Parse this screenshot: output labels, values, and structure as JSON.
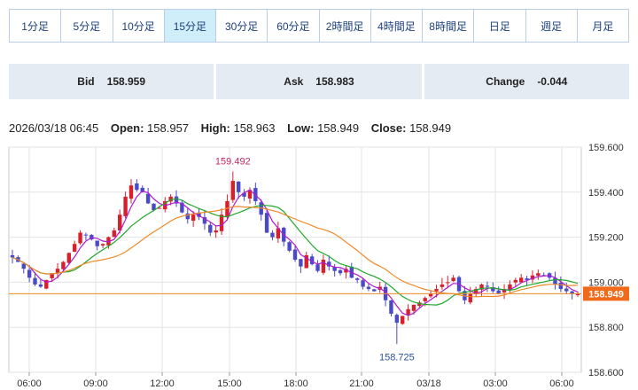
{
  "tabs": [
    {
      "label": "1分足",
      "active": false
    },
    {
      "label": "5分足",
      "active": false
    },
    {
      "label": "10分足",
      "active": false
    },
    {
      "label": "15分足",
      "active": true
    },
    {
      "label": "30分足",
      "active": false
    },
    {
      "label": "60分足",
      "active": false
    },
    {
      "label": "2時間足",
      "active": false
    },
    {
      "label": "4時間足",
      "active": false
    },
    {
      "label": "8時間足",
      "active": false
    },
    {
      "label": "日足",
      "active": false
    },
    {
      "label": "週足",
      "active": false
    },
    {
      "label": "月足",
      "active": false
    }
  ],
  "quotes": {
    "bid_label": "Bid",
    "bid_value": "158.959",
    "ask_label": "Ask",
    "ask_value": "158.983",
    "change_label": "Change",
    "change_value": "-0.044"
  },
  "ohlc": {
    "datetime": "2026/03/18 06:45",
    "open_label": "Open:",
    "open": "158.957",
    "high_label": "High:",
    "high": "158.963",
    "low_label": "Low:",
    "low": "158.949",
    "close_label": "Close:",
    "close": "158.949"
  },
  "chart_data": {
    "type": "candlestick",
    "ylim": [
      158.6,
      159.6
    ],
    "y_ticks": [
      "159.600",
      "159.400",
      "159.200",
      "159.000",
      "158.800",
      "158.600"
    ],
    "x_ticks": [
      "06:00",
      "09:00",
      "12:00",
      "15:00",
      "18:00",
      "21:00",
      "03/18",
      "03:00",
      "06:00"
    ],
    "current_price_label": "158.949",
    "current_price": 158.949,
    "high_annotation": {
      "label": "159.492",
      "value": 159.492
    },
    "low_annotation": {
      "label": "158.725",
      "value": 158.725
    },
    "colors": {
      "up": "#d8202c",
      "down": "#4a4ac8",
      "ma_short": "#b01ad0",
      "ma_mid": "#1fa82a",
      "ma_long": "#f08a28",
      "price_line": "#f08a28"
    },
    "closes": [
      159.11,
      159.09,
      159.06,
      159.02,
      158.99,
      158.98,
      159.01,
      159.04,
      159.06,
      159.09,
      159.13,
      159.17,
      159.22,
      159.21,
      159.19,
      159.16,
      159.17,
      159.2,
      159.23,
      159.3,
      159.38,
      159.43,
      159.41,
      159.4,
      159.35,
      159.32,
      159.33,
      159.36,
      159.38,
      159.35,
      159.31,
      159.28,
      159.3,
      159.29,
      159.26,
      159.22,
      159.23,
      159.3,
      159.36,
      159.45,
      159.4,
      159.38,
      159.41,
      159.36,
      159.3,
      159.22,
      159.2,
      159.24,
      159.18,
      159.14,
      159.1,
      159.07,
      159.12,
      159.08,
      159.05,
      159.1,
      159.07,
      159.05,
      159.04,
      159.06,
      159.02,
      159.01,
      158.98,
      158.97,
      158.96,
      158.98,
      158.92,
      158.86,
      158.82,
      158.85,
      158.88,
      158.9,
      158.91,
      158.93,
      158.95,
      158.97,
      158.99,
      159.0,
      159.02,
      158.96,
      158.92,
      158.95,
      158.97,
      158.99,
      158.98,
      158.96,
      158.95,
      158.97,
      158.99,
      159.01,
      159.02,
      159.01,
      159.03,
      159.04,
      159.03,
      159.02,
      158.99,
      158.97,
      158.96,
      158.95,
      158.949
    ]
  }
}
